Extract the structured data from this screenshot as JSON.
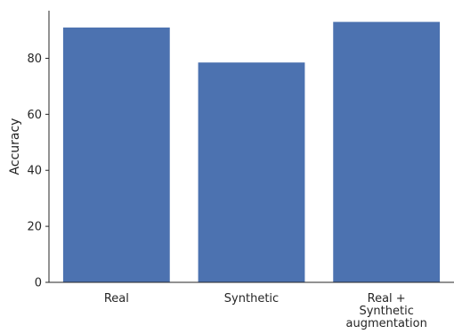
{
  "chart_data": {
    "type": "bar",
    "categories": [
      "Real",
      "Synthetic",
      "Real +\nSynthetic\naugmentation"
    ],
    "values": [
      91,
      78.5,
      93
    ],
    "title": "",
    "xlabel": "",
    "ylabel": "Accuracy",
    "ylim": [
      0,
      97
    ],
    "yticks": [
      0,
      20,
      40,
      60,
      80
    ],
    "grid": false,
    "bar_color": "#4c72b0",
    "axis_color": "#262626"
  }
}
